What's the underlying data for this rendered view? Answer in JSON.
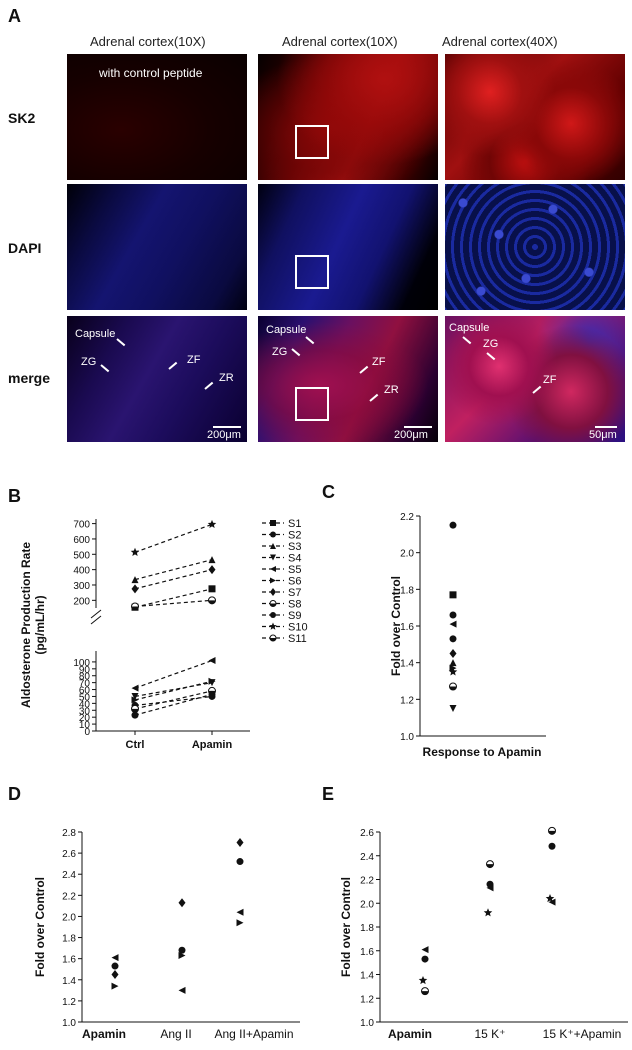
{
  "panel_A": {
    "letter": "A",
    "col_titles": [
      "Adrenal cortex(10X)",
      "Adrenal cortex(10X)",
      "Adrenal cortex(40X)"
    ],
    "row_labels": [
      "SK2",
      "DAPI",
      "merge"
    ],
    "control_note": "with control peptide",
    "zone_labels": {
      "left": [
        "Capsule",
        "ZG",
        "ZF",
        "ZR"
      ],
      "mid": [
        "Capsule",
        "ZG",
        "ZF",
        "ZR"
      ],
      "right": [
        "Capsule",
        "ZG",
        "ZF"
      ]
    },
    "scale_labels": [
      "200μm",
      "200μm",
      "50μm"
    ]
  },
  "panel_letters": {
    "B": "B",
    "C": "C",
    "D": "D",
    "E": "E"
  },
  "chart_data": [
    {
      "panel": "B",
      "type": "line",
      "ylabel": "Aldosterone Production Rate (pg/mL/hr)",
      "ylabel_lines": [
        "Aldosterone Production Rate",
        "(pg/mL/hr)"
      ],
      "categories": [
        "Ctrl",
        "Apamin"
      ],
      "broken_axis": true,
      "ylim_lower": [
        0,
        110
      ],
      "ylim_upper": [
        150,
        730
      ],
      "yticks_lower": [
        0,
        10,
        20,
        30,
        40,
        50,
        60,
        70,
        80,
        90,
        100
      ],
      "yticks_upper": [
        200,
        300,
        400,
        500,
        600,
        700
      ],
      "legend_position": "right",
      "series": [
        {
          "name": "S1",
          "marker": "square",
          "values": [
            155,
            275
          ]
        },
        {
          "name": "S2",
          "marker": "circle",
          "values": [
            37,
            50
          ]
        },
        {
          "name": "S3",
          "marker": "triangle-up",
          "values": [
            335,
            465
          ]
        },
        {
          "name": "S4",
          "marker": "triangle-down",
          "values": [
            50,
            70
          ]
        },
        {
          "name": "S5",
          "marker": "triangle-left",
          "values": [
            62,
            102
          ]
        },
        {
          "name": "S6",
          "marker": "triangle-right",
          "values": [
            45,
            72
          ]
        },
        {
          "name": "S7",
          "marker": "diamond",
          "values": [
            275,
            400
          ]
        },
        {
          "name": "S8",
          "marker": "circle-half",
          "values": [
            32,
            58
          ]
        },
        {
          "name": "S9",
          "marker": "circle",
          "values": [
            23,
            53
          ]
        },
        {
          "name": "S10",
          "marker": "star",
          "values": [
            513,
            695
          ]
        },
        {
          "name": "S11",
          "marker": "circle-half",
          "values": [
            160,
            200
          ]
        }
      ]
    },
    {
      "panel": "C",
      "type": "scatter",
      "ylabel": "Fold over Control",
      "xlabel": "Response to Apamin",
      "ylim": [
        1.0,
        2.2
      ],
      "yticks": [
        "1.0",
        "1.2",
        "1.4",
        "1.6",
        "1.8",
        "2.0",
        "2.2"
      ],
      "points": [
        {
          "marker": "circle",
          "y": 2.15
        },
        {
          "marker": "square",
          "y": 1.77
        },
        {
          "marker": "circle",
          "y": 1.66
        },
        {
          "marker": "triangle-left",
          "y": 1.61
        },
        {
          "marker": "circle",
          "y": 1.53
        },
        {
          "marker": "diamond",
          "y": 1.45
        },
        {
          "marker": "triangle-up",
          "y": 1.4
        },
        {
          "marker": "triangle-right",
          "y": 1.37
        },
        {
          "marker": "star",
          "y": 1.35
        },
        {
          "marker": "circle-half",
          "y": 1.27
        },
        {
          "marker": "triangle-down",
          "y": 1.15
        }
      ]
    },
    {
      "panel": "D",
      "type": "scatter",
      "ylabel": "Fold over Control",
      "categories": [
        "Apamin",
        "Ang II",
        "Ang II+Apamin"
      ],
      "ylim": [
        1.0,
        2.8
      ],
      "yticks": [
        "1.0",
        "1.2",
        "1.4",
        "1.6",
        "1.8",
        "2.0",
        "2.2",
        "2.4",
        "2.6",
        "2.8"
      ],
      "points": [
        {
          "category": 0,
          "marker": "triangle-left",
          "y": 1.61
        },
        {
          "category": 0,
          "marker": "circle",
          "y": 1.53
        },
        {
          "category": 0,
          "marker": "diamond",
          "y": 1.45
        },
        {
          "category": 0,
          "marker": "triangle-right",
          "y": 1.34
        },
        {
          "category": 1,
          "marker": "diamond",
          "y": 2.13
        },
        {
          "category": 1,
          "marker": "circle",
          "y": 1.68
        },
        {
          "category": 1,
          "marker": "triangle-right",
          "y": 1.63
        },
        {
          "category": 1,
          "marker": "triangle-left",
          "y": 1.3
        },
        {
          "category": 2,
          "marker": "diamond",
          "y": 2.7
        },
        {
          "category": 2,
          "marker": "circle",
          "y": 2.52
        },
        {
          "category": 2,
          "marker": "triangle-left",
          "y": 2.04
        },
        {
          "category": 2,
          "marker": "triangle-right",
          "y": 1.94
        }
      ]
    },
    {
      "panel": "E",
      "type": "scatter",
      "ylabel": "Fold over Control",
      "categories": [
        "Apamin",
        "15 K⁺",
        "15 K⁺+Apamin"
      ],
      "ylim": [
        1.0,
        2.6
      ],
      "yticks": [
        "1.0",
        "1.2",
        "1.4",
        "1.6",
        "1.8",
        "2.0",
        "2.2",
        "2.4",
        "2.6"
      ],
      "points": [
        {
          "category": 0,
          "marker": "triangle-left",
          "y": 1.61
        },
        {
          "category": 0,
          "marker": "circle",
          "y": 1.53
        },
        {
          "category": 0,
          "marker": "star",
          "y": 1.35
        },
        {
          "category": 0,
          "marker": "circle-half",
          "y": 1.26
        },
        {
          "category": 1,
          "marker": "circle-half",
          "y": 2.33
        },
        {
          "category": 1,
          "marker": "circle",
          "y": 2.16
        },
        {
          "category": 1,
          "marker": "triangle-left",
          "y": 2.13
        },
        {
          "category": 1,
          "marker": "star",
          "y": 1.92
        },
        {
          "category": 2,
          "marker": "circle-half",
          "y": 2.61
        },
        {
          "category": 2,
          "marker": "circle",
          "y": 2.48
        },
        {
          "category": 2,
          "marker": "star",
          "y": 2.04
        },
        {
          "category": 2,
          "marker": "triangle-left",
          "y": 2.01
        }
      ]
    }
  ]
}
